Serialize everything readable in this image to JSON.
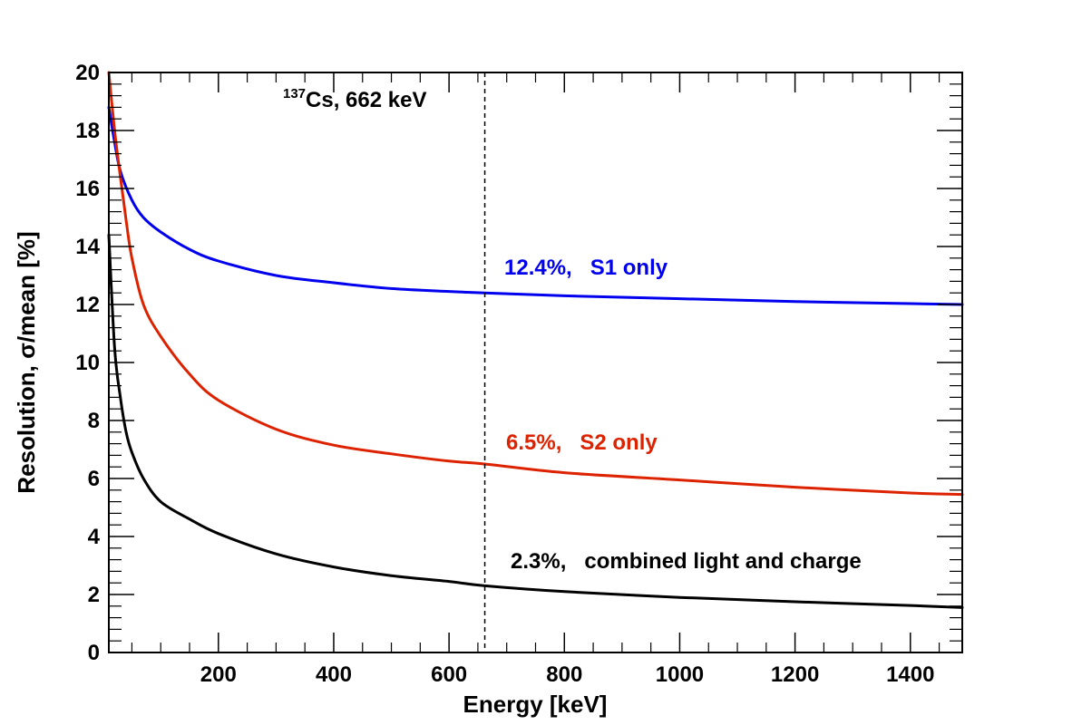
{
  "chart_data": {
    "type": "line",
    "title": "",
    "xlabel": "Energy [keV]",
    "ylabel": "Resolution, σ/mean [%]",
    "xlim": [
      10,
      1490
    ],
    "ylim": [
      0,
      20
    ],
    "x_ticks": [
      200,
      400,
      600,
      800,
      1000,
      1200,
      1400
    ],
    "y_ticks": [
      0,
      2,
      4,
      6,
      8,
      10,
      12,
      14,
      16,
      18,
      20
    ],
    "grid": false,
    "legend": "none",
    "series": [
      {
        "color": "#0000ee",
        "x": [
          10,
          20,
          30,
          50,
          70,
          100,
          150,
          200,
          300,
          400,
          500,
          600,
          662,
          800,
          1000,
          1200,
          1400,
          1490
        ],
        "values": [
          18.8,
          17.6,
          16.6,
          15.6,
          15.0,
          14.5,
          13.9,
          13.5,
          13.0,
          12.75,
          12.55,
          12.45,
          12.4,
          12.3,
          12.2,
          12.1,
          12.03,
          12.0
        ]
      },
      {
        "color": "#dd2200",
        "x": [
          10,
          20,
          30,
          40,
          50,
          70,
          100,
          150,
          200,
          300,
          400,
          500,
          600,
          662,
          800,
          1000,
          1200,
          1400,
          1490
        ],
        "values": [
          20.0,
          18.0,
          16.4,
          14.9,
          13.6,
          12.0,
          10.9,
          9.6,
          8.7,
          7.7,
          7.15,
          6.85,
          6.6,
          6.5,
          6.2,
          5.95,
          5.7,
          5.5,
          5.45
        ]
      },
      {
        "color": "#000000",
        "x": [
          10,
          20,
          30,
          40,
          50,
          70,
          100,
          150,
          200,
          300,
          400,
          500,
          600,
          662,
          800,
          1000,
          1200,
          1400,
          1490
        ],
        "values": [
          14.4,
          10.5,
          8.8,
          7.6,
          6.9,
          6.0,
          5.2,
          4.6,
          4.1,
          3.4,
          2.95,
          2.65,
          2.45,
          2.3,
          2.1,
          1.9,
          1.75,
          1.62,
          1.55
        ]
      }
    ],
    "annotations": {
      "marker_x": 662,
      "marker_isotope_mass": "137",
      "marker_isotope_label": "Cs, 662 keV",
      "s1_label": "12.4%,   S1 only",
      "s2_label": "6.5%,   S2 only",
      "combined_label": "2.3%,   combined light and charge"
    }
  }
}
